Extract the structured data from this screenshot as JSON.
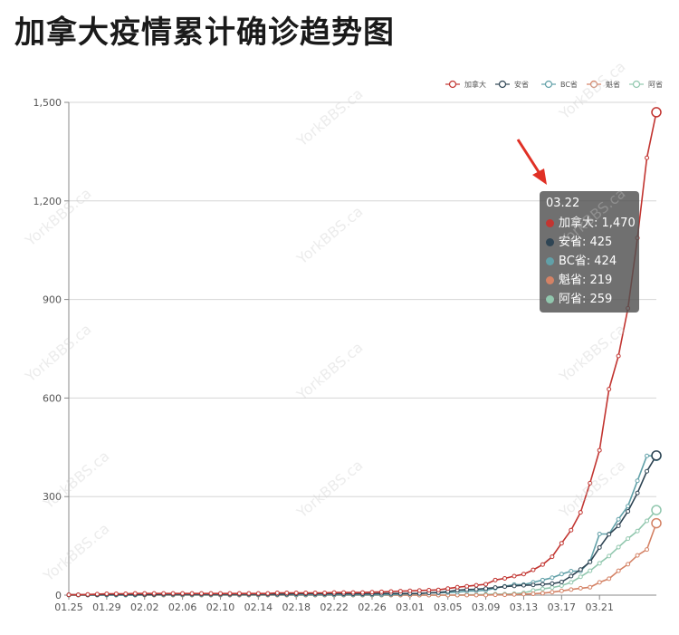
{
  "title": "加拿大疫情累计确诊趋势图",
  "watermark_text": "YorkBBS.ca",
  "tooltip": {
    "title": "03.22",
    "rows": [
      {
        "label": "加拿大: 1,470",
        "color": "#c23531"
      },
      {
        "label": "安省: 425",
        "color": "#2f4554"
      },
      {
        "label": "BC省: 424",
        "color": "#61a0a8"
      },
      {
        "label": "魁省: 219",
        "color": "#d48265"
      },
      {
        "label": "阿省: 259",
        "color": "#91c7ae"
      }
    ]
  },
  "chart_data": {
    "type": "line",
    "title": "",
    "xlabel": "",
    "ylabel": "",
    "ylim": [
      0,
      1500
    ],
    "yticks": [
      "0",
      "300",
      "600",
      "900",
      "1,200",
      "1,500"
    ],
    "ytick_values": [
      0,
      300,
      600,
      900,
      1200,
      1500
    ],
    "xtick_labels": [
      "01.25",
      "01.29",
      "02.02",
      "02.06",
      "02.10",
      "02.14",
      "02.18",
      "02.22",
      "02.26",
      "03.01",
      "03.05",
      "03.09",
      "03.13",
      "03.17",
      "03.21"
    ],
    "x_start": "01.25",
    "x_end": "03.22",
    "grid": true,
    "legend_position": "top-right",
    "series": [
      {
        "name": "加拿大",
        "color": "#c23531",
        "values": [
          1,
          1,
          2,
          3,
          4,
          4,
          4,
          5,
          5,
          5,
          5,
          5,
          5,
          5,
          5,
          5,
          5,
          5,
          5,
          5,
          5,
          5,
          7,
          7,
          7,
          7,
          7,
          7,
          8,
          8,
          8,
          8,
          9,
          10,
          11,
          12,
          13,
          14,
          15,
          16,
          20,
          24,
          27,
          30,
          33,
          46,
          51,
          58,
          64,
          77,
          93,
          117,
          158,
          198,
          252,
          341,
          441,
          627,
          728,
          873,
          1087,
          1331,
          1470
        ]
      },
      {
        "name": "安省",
        "color": "#2f4554",
        "values": [
          1,
          1,
          1,
          1,
          2,
          2,
          2,
          2,
          2,
          2,
          3,
          3,
          3,
          3,
          3,
          3,
          3,
          3,
          3,
          3,
          3,
          3,
          3,
          3,
          4,
          4,
          4,
          4,
          4,
          4,
          4,
          4,
          4,
          5,
          5,
          5,
          5,
          5,
          7,
          8,
          11,
          15,
          17,
          18,
          20,
          23,
          26,
          28,
          30,
          31,
          33,
          35,
          40,
          58,
          78,
          101,
          145,
          185,
          211,
          255,
          311,
          377,
          425
        ]
      },
      {
        "name": "BC省",
        "color": "#61a0a8",
        "values": [
          0,
          0,
          0,
          0,
          0,
          0,
          0,
          0,
          1,
          1,
          1,
          1,
          1,
          1,
          1,
          1,
          1,
          1,
          1,
          1,
          1,
          1,
          1,
          1,
          1,
          1,
          1,
          1,
          1,
          1,
          1,
          1,
          1,
          1,
          2,
          3,
          4,
          5,
          7,
          7,
          8,
          9,
          12,
          13,
          15,
          21,
          27,
          32,
          32,
          39,
          46,
          53,
          64,
          73,
          73,
          103,
          186,
          186,
          231,
          271,
          348,
          424,
          424
        ]
      },
      {
        "name": "魁省",
        "color": "#d48265",
        "values": [
          0,
          0,
          0,
          0,
          0,
          0,
          0,
          0,
          0,
          0,
          0,
          0,
          0,
          0,
          0,
          0,
          0,
          0,
          0,
          0,
          0,
          0,
          0,
          0,
          0,
          0,
          0,
          0,
          0,
          0,
          0,
          0,
          0,
          0,
          0,
          0,
          0,
          0,
          0,
          0,
          0,
          0,
          0,
          0,
          0,
          1,
          1,
          2,
          3,
          4,
          6,
          9,
          13,
          17,
          21,
          24,
          39,
          50,
          74,
          94,
          121,
          139,
          219
        ]
      },
      {
        "name": "阿省",
        "color": "#91c7ae",
        "values": [
          0,
          0,
          0,
          0,
          0,
          0,
          0,
          0,
          0,
          0,
          0,
          0,
          0,
          0,
          0,
          0,
          0,
          0,
          0,
          0,
          0,
          0,
          0,
          0,
          0,
          0,
          0,
          0,
          0,
          0,
          0,
          0,
          0,
          0,
          0,
          0,
          0,
          0,
          0,
          0,
          0,
          0,
          1,
          1,
          2,
          3,
          3,
          4,
          7,
          14,
          19,
          23,
          29,
          39,
          56,
          74,
          97,
          119,
          146,
          172,
          195,
          226,
          259
        ]
      }
    ]
  }
}
